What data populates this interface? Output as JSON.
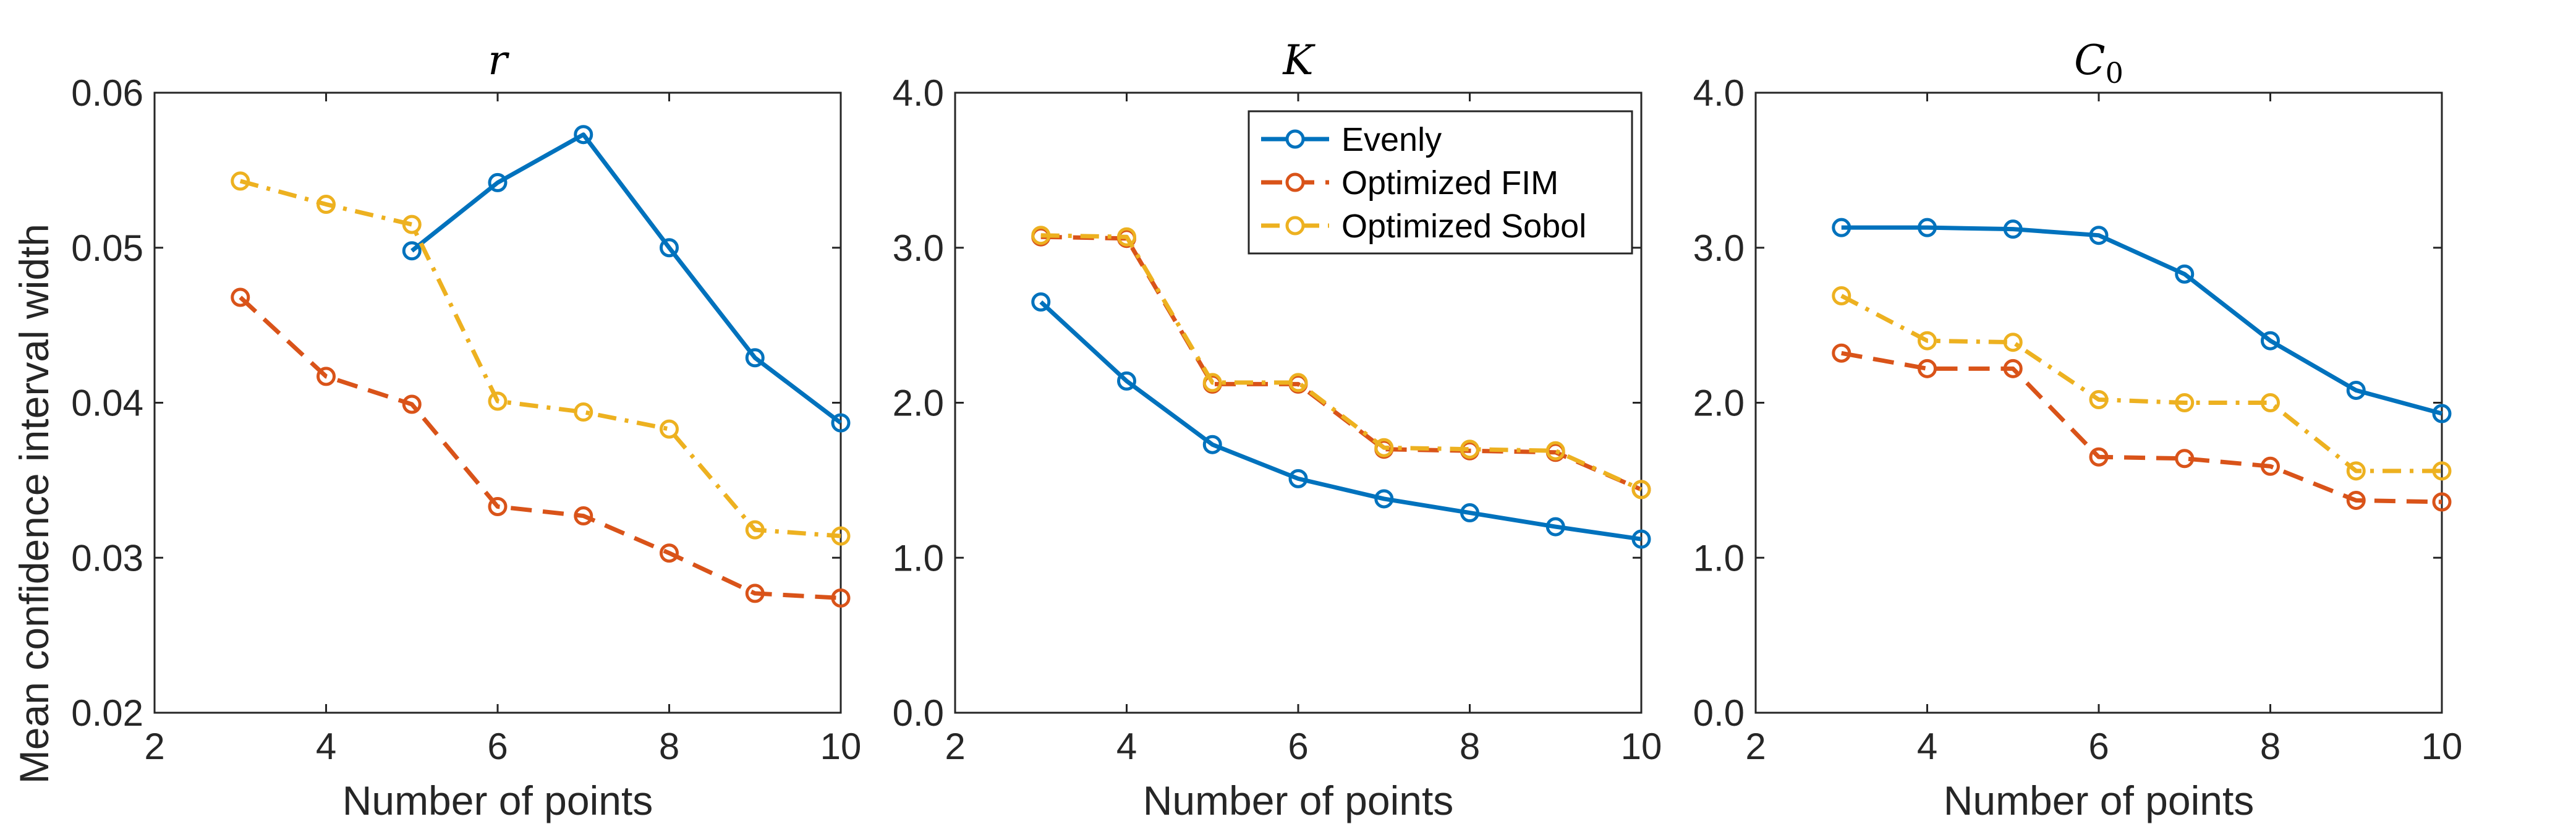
{
  "colors": {
    "evenly": "#0072BD",
    "fim": "#D95319",
    "sobol": "#EDB120",
    "axis": "#262626"
  },
  "legend": {
    "entries": [
      "Evenly",
      "Optimized FIM",
      "Optimized Sobol"
    ],
    "placement": "top-right of middle panel"
  },
  "ylabel": "Mean confidence interval width",
  "chart_data": [
    {
      "type": "line",
      "title": "r",
      "xlabel": "Number of points",
      "ylabel": "Mean confidence interval width",
      "xlim": [
        2,
        10
      ],
      "ylim": [
        0.02,
        0.06
      ],
      "xticks": [
        2,
        4,
        6,
        8,
        10
      ],
      "yticks": [
        0.02,
        0.03,
        0.04,
        0.05,
        0.06
      ],
      "ytick_labels": [
        "0.02",
        "0.03",
        "0.04",
        "0.05",
        "0.06"
      ],
      "grid": false,
      "series": [
        {
          "name": "Evenly",
          "x": [
            5,
            6,
            7,
            8,
            9,
            10
          ],
          "values": [
            0.0498,
            0.0542,
            0.0573,
            0.05,
            0.0429,
            0.0387
          ]
        },
        {
          "name": "Optimized FIM",
          "x": [
            3,
            4,
            5,
            6,
            7,
            8,
            9,
            10
          ],
          "values": [
            0.0468,
            0.0417,
            0.0399,
            0.0333,
            0.0327,
            0.0303,
            0.0277,
            0.0274
          ]
        },
        {
          "name": "Optimized Sobol",
          "x": [
            3,
            4,
            5,
            6,
            7,
            8,
            9,
            10
          ],
          "values": [
            0.0543,
            0.0528,
            0.0515,
            0.0401,
            0.0394,
            0.0383,
            0.0318,
            0.0314
          ]
        }
      ]
    },
    {
      "type": "line",
      "title": "K",
      "xlabel": "Number of points",
      "xlim": [
        2,
        10
      ],
      "ylim": [
        0,
        4
      ],
      "xticks": [
        2,
        4,
        6,
        8,
        10
      ],
      "yticks": [
        0,
        1,
        2,
        3,
        4
      ],
      "ytick_labels": [
        "0.0",
        "1.0",
        "2.0",
        "3.0",
        "4.0"
      ],
      "grid": false,
      "series": [
        {
          "name": "Evenly",
          "x": [
            3,
            4,
            5,
            6,
            7,
            8,
            9,
            10
          ],
          "values": [
            2.65,
            2.14,
            1.73,
            1.51,
            1.38,
            1.29,
            1.2,
            1.12
          ]
        },
        {
          "name": "Optimized FIM",
          "x": [
            3,
            4,
            5,
            6,
            7,
            8,
            9,
            10
          ],
          "values": [
            3.07,
            3.06,
            2.12,
            2.12,
            1.7,
            1.69,
            1.68,
            1.44
          ]
        },
        {
          "name": "Optimized Sobol",
          "x": [
            3,
            4,
            5,
            6,
            7,
            8,
            9,
            10
          ],
          "values": [
            3.08,
            3.07,
            2.13,
            2.13,
            1.71,
            1.7,
            1.69,
            1.44
          ]
        }
      ]
    },
    {
      "type": "line",
      "title": "C0",
      "xlabel": "Number of points",
      "xlim": [
        2,
        10
      ],
      "ylim": [
        0,
        4
      ],
      "xticks": [
        2,
        4,
        6,
        8,
        10
      ],
      "yticks": [
        0,
        1,
        2,
        3,
        4
      ],
      "ytick_labels": [
        "0.0",
        "1.0",
        "2.0",
        "3.0",
        "4.0"
      ],
      "grid": false,
      "series": [
        {
          "name": "Evenly",
          "x": [
            3,
            4,
            5,
            6,
            7,
            8,
            9,
            10
          ],
          "values": [
            3.13,
            3.13,
            3.12,
            3.08,
            2.83,
            2.4,
            2.08,
            1.93
          ]
        },
        {
          "name": "Optimized FIM",
          "x": [
            3,
            4,
            5,
            6,
            7,
            8,
            9,
            10
          ],
          "values": [
            2.32,
            2.22,
            2.22,
            1.65,
            1.64,
            1.59,
            1.37,
            1.36
          ]
        },
        {
          "name": "Optimized Sobol",
          "x": [
            3,
            4,
            5,
            6,
            7,
            8,
            9,
            10
          ],
          "values": [
            2.69,
            2.4,
            2.39,
            2.02,
            2.0,
            2.0,
            1.56,
            1.56
          ]
        }
      ]
    }
  ]
}
